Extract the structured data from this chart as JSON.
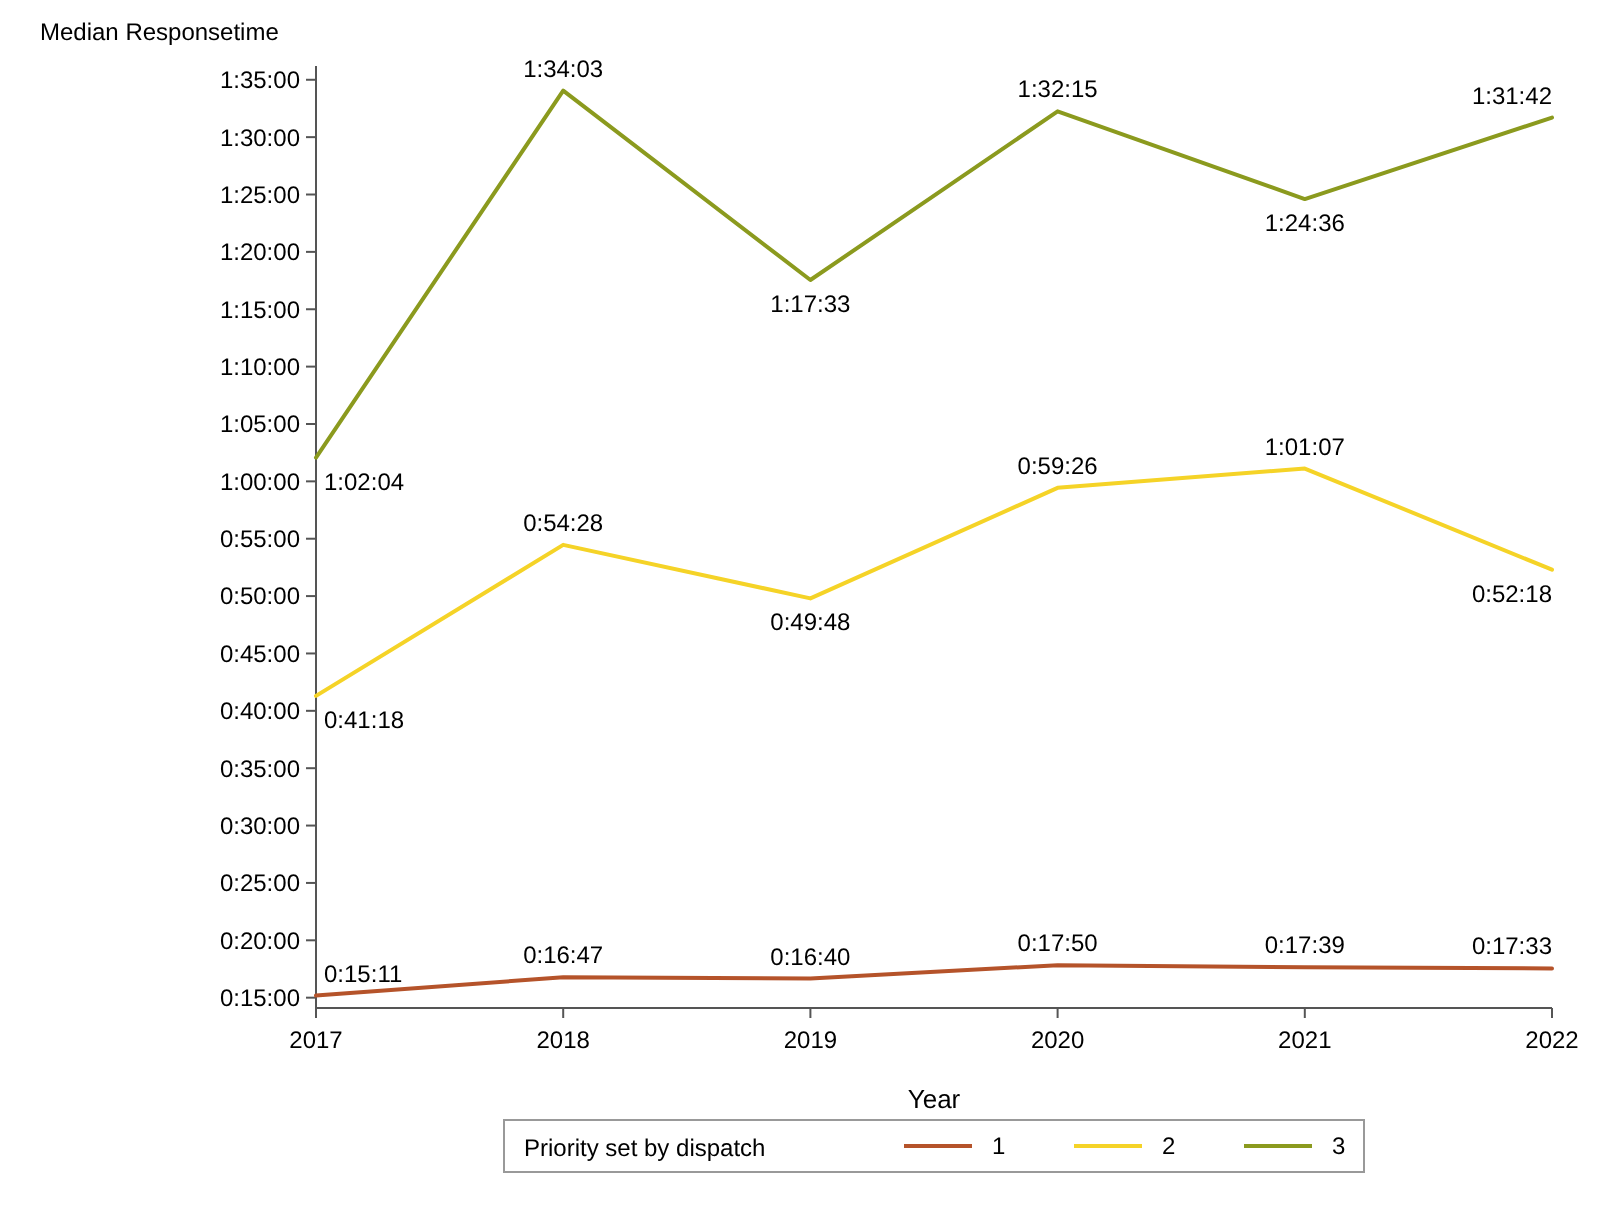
{
  "chart_data": {
    "type": "line",
    "ylabel": "Median Responsetime",
    "xlabel": "Year",
    "legend_title": "Priority set by dispatch",
    "legend": "bottom",
    "grid": false,
    "marker": "none",
    "line_style": "solid",
    "x": [
      2017,
      2018,
      2019,
      2020,
      2021,
      2022
    ],
    "xlim": [
      2017,
      2022
    ],
    "xticks": [
      2017,
      2018,
      2019,
      2020,
      2021,
      2022
    ],
    "ylim": [
      14.1,
      96.2
    ],
    "yticks": [
      {
        "value": 15,
        "label": "0:15:00"
      },
      {
        "value": 20,
        "label": "0:20:00"
      },
      {
        "value": 25,
        "label": "0:25:00"
      },
      {
        "value": 30,
        "label": "0:30:00"
      },
      {
        "value": 35,
        "label": "0:35:00"
      },
      {
        "value": 40,
        "label": "0:40:00"
      },
      {
        "value": 45,
        "label": "0:45:00"
      },
      {
        "value": 50,
        "label": "0:50:00"
      },
      {
        "value": 55,
        "label": "0:55:00"
      },
      {
        "value": 60,
        "label": "1:00:00"
      },
      {
        "value": 65,
        "label": "1:05:00"
      },
      {
        "value": 70,
        "label": "1:10:00"
      },
      {
        "value": 75,
        "label": "1:15:00"
      },
      {
        "value": 80,
        "label": "1:20:00"
      },
      {
        "value": 85,
        "label": "1:25:00"
      },
      {
        "value": 90,
        "label": "1:30:00"
      },
      {
        "value": 95,
        "label": "1:35:00"
      }
    ],
    "series": [
      {
        "name": "1",
        "color": "#b5532a",
        "values": [
          15.183,
          16.783,
          16.667,
          17.833,
          17.65,
          17.55
        ],
        "value_labels": [
          "0:15:11",
          "0:16:47",
          "0:16:40",
          "0:17:50",
          "0:17:39",
          "0:17:33"
        ]
      },
      {
        "name": "2",
        "color": "#f5d327",
        "values": [
          41.3,
          54.467,
          49.8,
          59.433,
          61.117,
          52.3
        ],
        "value_labels": [
          "0:41:18",
          "0:54:28",
          "0:49:48",
          "0:59:26",
          "1:01:07",
          "0:52:18"
        ]
      },
      {
        "name": "3",
        "color": "#8b9a1e",
        "values": [
          62.067,
          94.05,
          77.55,
          92.25,
          84.6,
          91.7
        ],
        "value_labels": [
          "1:02:04",
          "1:34:03",
          "1:17:33",
          "1:32:15",
          "1:24:36",
          "1:31:42"
        ]
      }
    ]
  }
}
